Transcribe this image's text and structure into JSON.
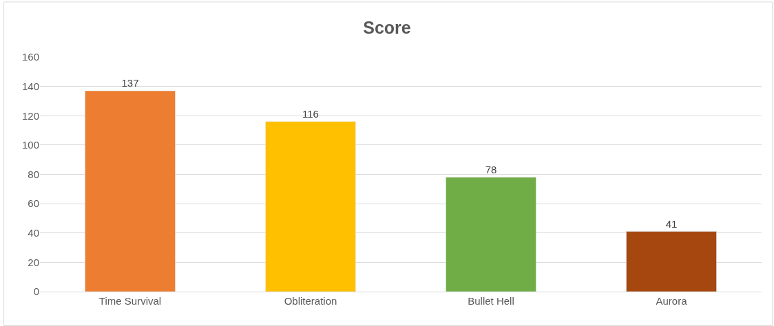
{
  "chart_data": {
    "type": "bar",
    "title": "Score",
    "categories": [
      "Time Survival",
      "Obliteration",
      "Bullet Hell",
      "Aurora"
    ],
    "values": [
      137,
      116,
      78,
      41
    ],
    "colors": [
      "#ed7d31",
      "#ffc000",
      "#70ad47",
      "#a5470f"
    ],
    "ylim": [
      0,
      160
    ],
    "yticks": [
      0,
      20,
      40,
      60,
      80,
      100,
      120,
      140,
      160
    ],
    "grid": "y",
    "data_labels": true
  }
}
